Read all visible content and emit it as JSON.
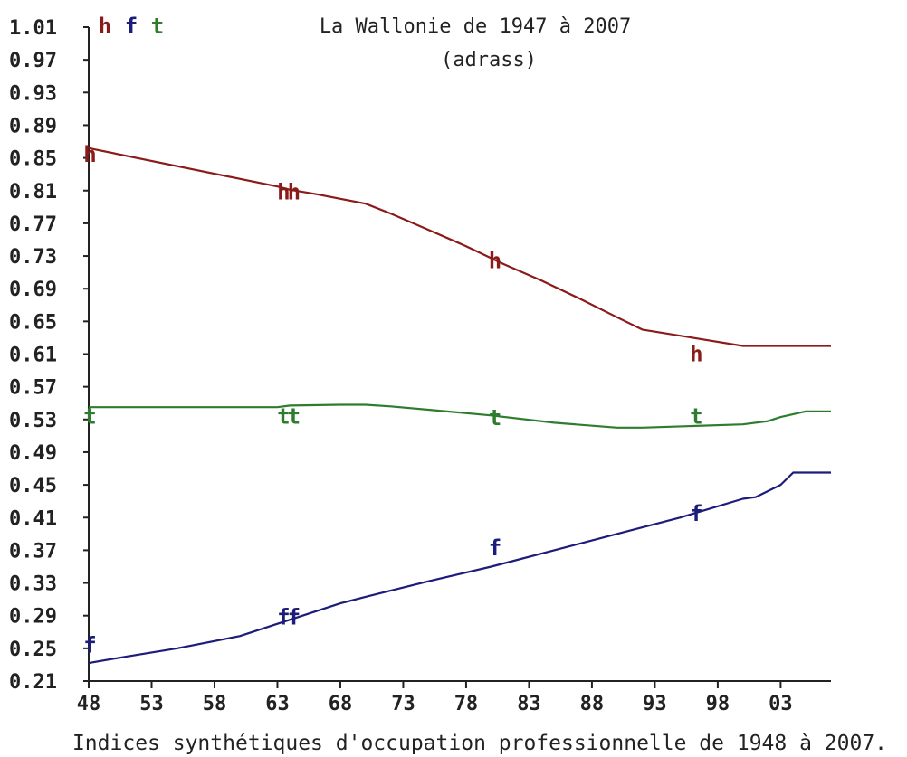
{
  "chart_data": {
    "type": "line",
    "title": "La Wallonie de 1947 à 2007",
    "subtitle": "(adrass)",
    "xlabel": "Indices synthétiques d'occupation professionnelle de  1948 à  2007.",
    "ylabel": "",
    "x_ticks": [
      "48",
      "53",
      "58",
      "63",
      "68",
      "73",
      "78",
      "83",
      "88",
      "93",
      "98",
      "03"
    ],
    "y_ticks": [
      "1.01",
      "0.97",
      "0.93",
      "0.89",
      "0.85",
      "0.81",
      "0.77",
      "0.73",
      "0.69",
      "0.65",
      "0.61",
      "0.57",
      "0.53",
      "0.49",
      "0.45",
      "0.41",
      "0.37",
      "0.33",
      "0.29",
      "0.25",
      "0.21"
    ],
    "xlim": [
      1948,
      2007
    ],
    "ylim": [
      0.21,
      1.01
    ],
    "grid": false,
    "legend": "top-left",
    "series": [
      {
        "name": "h",
        "color": "#8b1a1a",
        "x": [
          1948,
          1963,
          1964,
          1966,
          1968,
          1970,
          1972,
          1975,
          1978,
          1981,
          1984,
          1987,
          1990,
          1992,
          1996,
          2000,
          2007
        ],
        "y": [
          0.862,
          0.815,
          0.811,
          0.806,
          0.8,
          0.794,
          0.782,
          0.762,
          0.742,
          0.72,
          0.7,
          0.678,
          0.655,
          0.64,
          0.63,
          0.62,
          0.62
        ]
      },
      {
        "name": "t",
        "color": "#2e7d2e",
        "x": [
          1948,
          1963,
          1964,
          1968,
          1970,
          1972,
          1975,
          1980,
          1985,
          1990,
          1992,
          1996,
          2000,
          2002,
          2003,
          2005,
          2007
        ],
        "y": [
          0.545,
          0.545,
          0.547,
          0.548,
          0.548,
          0.546,
          0.542,
          0.535,
          0.526,
          0.52,
          0.52,
          0.522,
          0.524,
          0.528,
          0.533,
          0.54,
          0.54
        ]
      },
      {
        "name": "f",
        "color": "#1c1c7a",
        "x": [
          1948,
          1951,
          1955,
          1960,
          1961,
          1963,
          1964,
          1965,
          1968,
          1970,
          1975,
          1980,
          1985,
          1990,
          1995,
          2000,
          2001,
          2003,
          2004,
          2007
        ],
        "y": [
          0.232,
          0.24,
          0.25,
          0.265,
          0.27,
          0.28,
          0.285,
          0.29,
          0.305,
          0.313,
          0.332,
          0.35,
          0.37,
          0.39,
          0.41,
          0.433,
          0.435,
          0.45,
          0.465,
          0.465
        ]
      }
    ],
    "markers": [
      {
        "label": "h",
        "series": "h",
        "x": 1948,
        "y": 0.855
      },
      {
        "label": "hh",
        "series": "h",
        "x": 1963.8,
        "y": 0.809
      },
      {
        "label": "h",
        "series": "h",
        "x": 1980.2,
        "y": 0.725
      },
      {
        "label": "h",
        "series": "h",
        "x": 1996.2,
        "y": 0.611
      },
      {
        "label": "t",
        "series": "t",
        "x": 1948,
        "y": 0.535
      },
      {
        "label": "tt",
        "series": "t",
        "x": 1963.8,
        "y": 0.535
      },
      {
        "label": "t",
        "series": "t",
        "x": 1980.2,
        "y": 0.533
      },
      {
        "label": "t",
        "series": "t",
        "x": 1996.2,
        "y": 0.535
      },
      {
        "label": "f",
        "series": "f",
        "x": 1948,
        "y": 0.255
      },
      {
        "label": "ff",
        "series": "f",
        "x": 1963.8,
        "y": 0.289
      },
      {
        "label": "f",
        "series": "f",
        "x": 1980.2,
        "y": 0.374
      },
      {
        "label": "f",
        "series": "f",
        "x": 1996.2,
        "y": 0.416
      }
    ],
    "legend_entries": [
      {
        "label": "h",
        "color": "#8b1a1a"
      },
      {
        "label": "f",
        "color": "#1c1c7a"
      },
      {
        "label": "t",
        "color": "#2e7d2e"
      }
    ]
  }
}
